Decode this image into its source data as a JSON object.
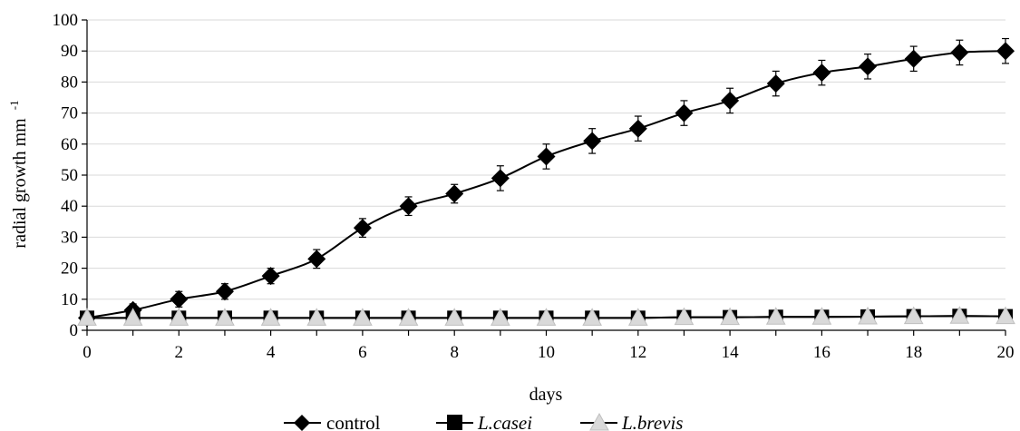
{
  "chart_data": {
    "type": "line",
    "xlabel": "days",
    "ylabel": "radial growth mm",
    "ylabel_sup": "-1",
    "xlim": [
      0,
      20
    ],
    "ylim": [
      0,
      100
    ],
    "xticks": [
      0,
      2,
      4,
      6,
      8,
      10,
      12,
      14,
      16,
      18,
      20
    ],
    "yticks": [
      0,
      10,
      20,
      30,
      40,
      50,
      60,
      70,
      80,
      90,
      100
    ],
    "grid": "horizontal",
    "legend_position": "bottom",
    "x": [
      0,
      1,
      2,
      3,
      4,
      5,
      6,
      7,
      8,
      9,
      10,
      11,
      12,
      13,
      14,
      15,
      16,
      17,
      18,
      19,
      20
    ],
    "series": [
      {
        "name": "control",
        "marker": "diamond",
        "color": "#000000",
        "values": [
          4,
          6.5,
          10,
          12.5,
          17.5,
          23,
          33,
          40,
          44,
          49,
          56,
          61,
          65,
          70,
          74,
          79.5,
          83,
          85,
          87.5,
          89.5,
          90
        ],
        "error": [
          1,
          2,
          2.5,
          2.5,
          2.5,
          3,
          3,
          3,
          3,
          4,
          4,
          4,
          4,
          4,
          4,
          4,
          4,
          4,
          4,
          4,
          4
        ]
      },
      {
        "name": "L.casei",
        "marker": "square",
        "color": "#000000",
        "values": [
          4,
          4,
          4,
          4,
          4,
          4,
          4,
          4,
          4,
          4,
          4,
          4,
          4,
          4.2,
          4.2,
          4.3,
          4.3,
          4.4,
          4.5,
          4.6,
          4.5
        ]
      },
      {
        "name": "L.brevis",
        "marker": "triangle",
        "color": "#d9d9d9",
        "values": [
          4,
          4,
          4,
          4,
          4,
          4,
          4,
          4,
          4,
          4,
          4,
          4,
          4,
          4.2,
          4.2,
          4.3,
          4.3,
          4.4,
          4.5,
          4.6,
          4.5
        ]
      }
    ]
  }
}
